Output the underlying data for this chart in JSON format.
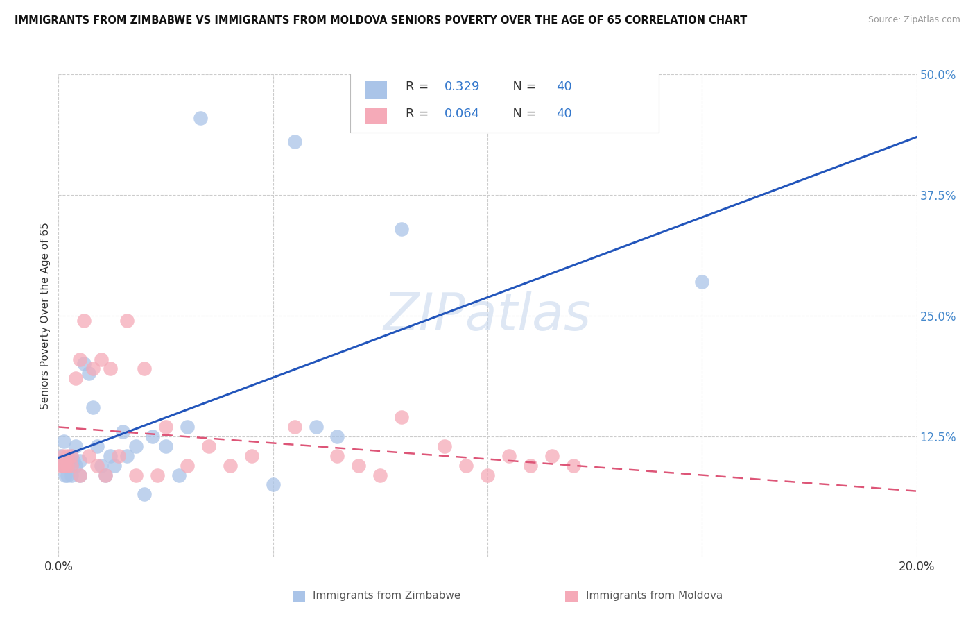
{
  "title": "IMMIGRANTS FROM ZIMBABWE VS IMMIGRANTS FROM MOLDOVA SENIORS POVERTY OVER THE AGE OF 65 CORRELATION CHART",
  "source": "Source: ZipAtlas.com",
  "xlabel_zimbabwe": "Immigrants from Zimbabwe",
  "xlabel_moldova": "Immigrants from Moldova",
  "ylabel": "Seniors Poverty Over the Age of 65",
  "xlim": [
    0.0,
    0.2
  ],
  "ylim": [
    0.0,
    0.5
  ],
  "xticks": [
    0.0,
    0.05,
    0.1,
    0.15,
    0.2
  ],
  "yticks": [
    0.0,
    0.125,
    0.25,
    0.375,
    0.5
  ],
  "ytick_labels_right": [
    "",
    "12.5%",
    "25.0%",
    "37.5%",
    "50.0%"
  ],
  "R_zimbabwe": 0.329,
  "N_zimbabwe": 40,
  "R_moldova": 0.064,
  "N_moldova": 40,
  "color_zimbabwe": "#aac4e8",
  "color_moldova": "#f5aab8",
  "line_color_zimbabwe": "#2255bb",
  "line_color_moldova": "#dd5577",
  "background_color": "#ffffff",
  "zimbabwe_x": [
    0.0005,
    0.001,
    0.001,
    0.0012,
    0.0015,
    0.002,
    0.002,
    0.002,
    0.0025,
    0.003,
    0.003,
    0.003,
    0.0035,
    0.004,
    0.004,
    0.005,
    0.005,
    0.006,
    0.007,
    0.008,
    0.009,
    0.01,
    0.011,
    0.012,
    0.013,
    0.015,
    0.016,
    0.018,
    0.02,
    0.022,
    0.025,
    0.028,
    0.03,
    0.033,
    0.05,
    0.055,
    0.06,
    0.065,
    0.08,
    0.15
  ],
  "zimbabwe_y": [
    0.105,
    0.1,
    0.095,
    0.12,
    0.085,
    0.095,
    0.1,
    0.085,
    0.1,
    0.095,
    0.105,
    0.085,
    0.1,
    0.095,
    0.115,
    0.085,
    0.1,
    0.2,
    0.19,
    0.155,
    0.115,
    0.095,
    0.085,
    0.105,
    0.095,
    0.13,
    0.105,
    0.115,
    0.065,
    0.125,
    0.115,
    0.085,
    0.135,
    0.455,
    0.075,
    0.43,
    0.135,
    0.125,
    0.34,
    0.285
  ],
  "moldova_x": [
    0.0005,
    0.001,
    0.001,
    0.0015,
    0.002,
    0.002,
    0.003,
    0.003,
    0.004,
    0.005,
    0.005,
    0.006,
    0.007,
    0.008,
    0.009,
    0.01,
    0.011,
    0.012,
    0.014,
    0.016,
    0.018,
    0.02,
    0.023,
    0.025,
    0.03,
    0.035,
    0.04,
    0.045,
    0.055,
    0.065,
    0.07,
    0.075,
    0.08,
    0.09,
    0.095,
    0.1,
    0.105,
    0.11,
    0.115,
    0.12
  ],
  "moldova_y": [
    0.095,
    0.095,
    0.105,
    0.095,
    0.095,
    0.105,
    0.095,
    0.105,
    0.185,
    0.085,
    0.205,
    0.245,
    0.105,
    0.195,
    0.095,
    0.205,
    0.085,
    0.195,
    0.105,
    0.245,
    0.085,
    0.195,
    0.085,
    0.135,
    0.095,
    0.115,
    0.095,
    0.105,
    0.135,
    0.105,
    0.095,
    0.085,
    0.145,
    0.115,
    0.095,
    0.085,
    0.105,
    0.095,
    0.105,
    0.095
  ]
}
